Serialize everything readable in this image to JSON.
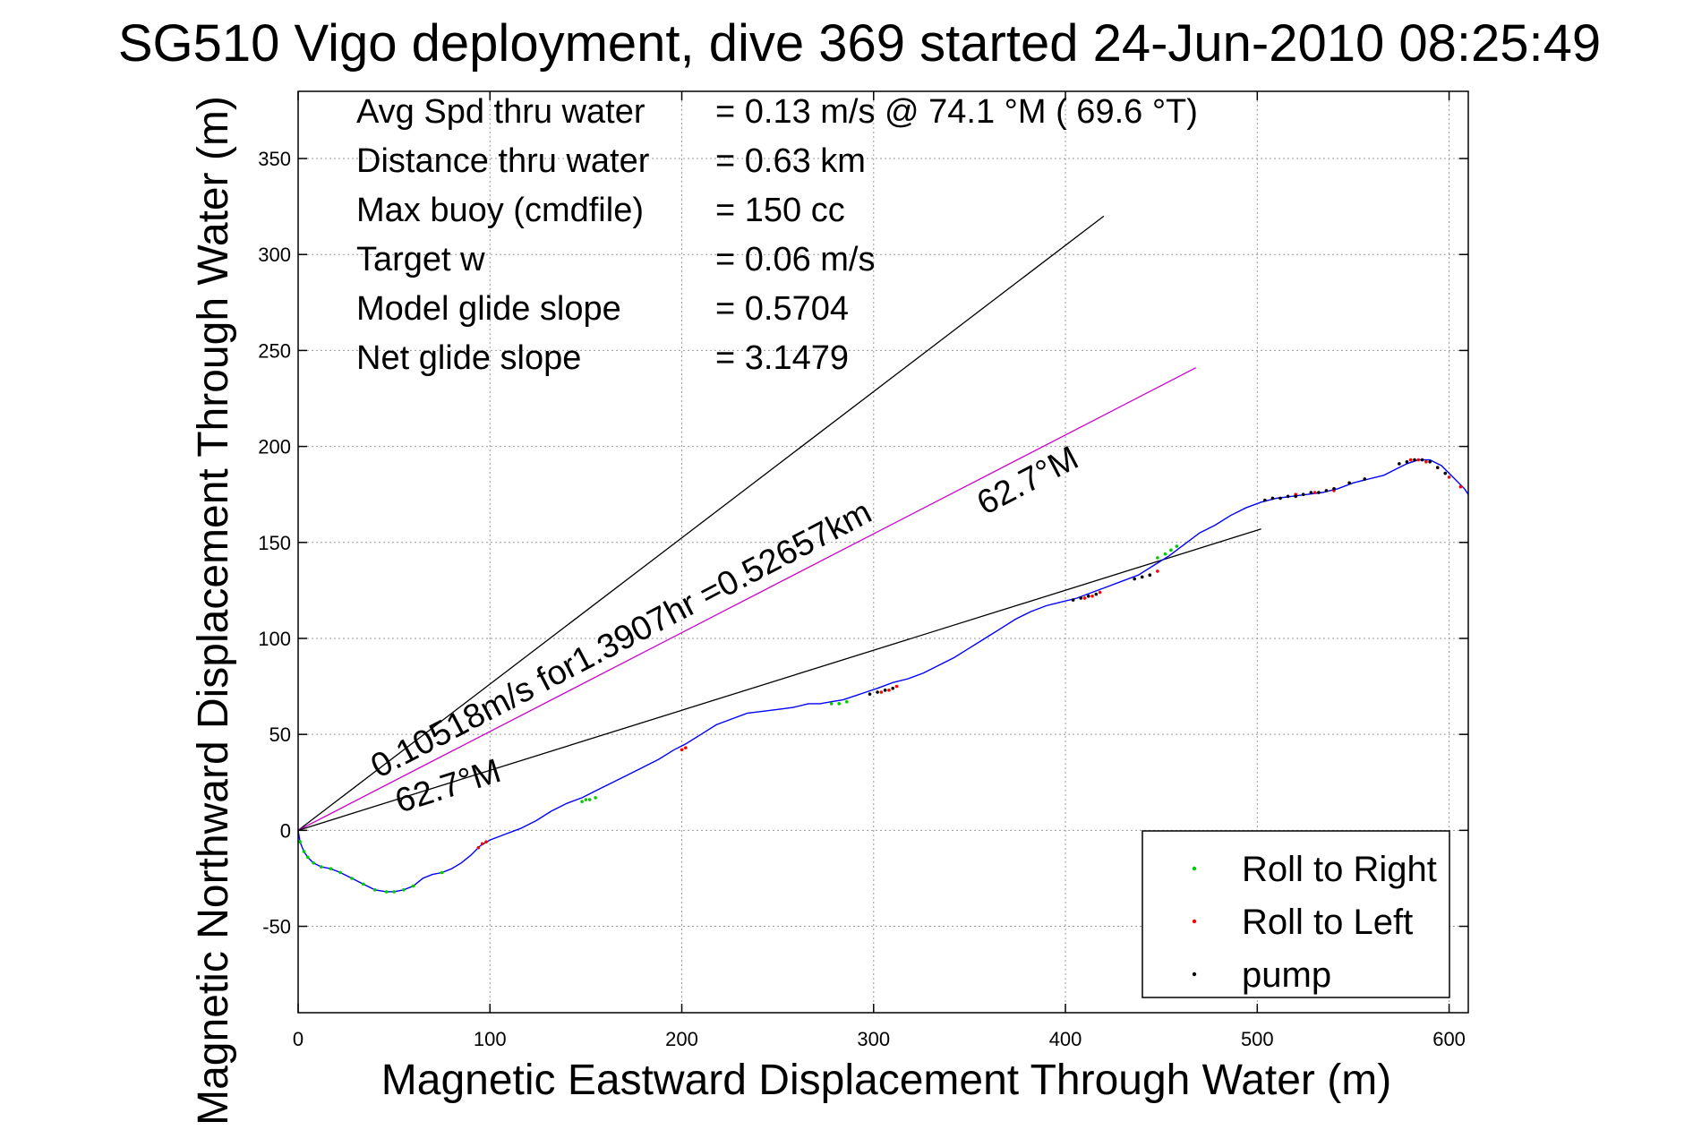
{
  "chart_data": {
    "type": "line",
    "title": "SG510 Vigo deployment, dive 369 started 24-Jun-2010 08:25:49",
    "xlabel": "Magnetic Eastward Displacement Through Water (m)",
    "ylabel": "Magnetic Northward Displacement Through Water (m)",
    "xlim": [
      0,
      610
    ],
    "ylim": [
      -95,
      385
    ],
    "xticks": [
      0,
      100,
      200,
      300,
      400,
      500,
      600
    ],
    "yticks": [
      -50,
      0,
      50,
      100,
      150,
      200,
      250,
      300,
      350
    ],
    "grid": true,
    "legend_position": "bottom-right",
    "stats": [
      {
        "label": "Avg Spd thru water",
        "value": "=  0.13 m/s @  74.1 °M ( 69.6 °T)"
      },
      {
        "label": "Distance thru water",
        "value": "=  0.63 km"
      },
      {
        "label": "Max buoy (cmdfile)",
        "value": "= 150 cc"
      },
      {
        "label": "Target w",
        "value": "= 0.06 m/s"
      },
      {
        "label": "Model glide slope",
        "value": "= 0.5704"
      },
      {
        "label": "Net glide slope",
        "value": "= 3.1479"
      }
    ],
    "reference_lines": [
      {
        "color": "#000000",
        "x": [
          0,
          420
        ],
        "y": [
          0,
          320
        ]
      },
      {
        "color": "#cc00cc",
        "x": [
          0,
          468
        ],
        "y": [
          0,
          241
        ]
      },
      {
        "color": "#000000",
        "x": [
          0,
          502
        ],
        "y": [
          0,
          157
        ]
      }
    ],
    "annotations": [
      {
        "text": "0.10518m/s for1.3907hr =0.52657km",
        "x": 42,
        "y": 27,
        "angle": 27.6
      },
      {
        "text": "62.7°M",
        "x": 358,
        "y": 164,
        "angle": 27.6
      },
      {
        "text": "62.7°M",
        "x": 53,
        "y": 9,
        "angle": 17.6
      }
    ],
    "series": [
      {
        "name": "track",
        "color": "#0000ff",
        "x": [
          0,
          1,
          3,
          5,
          8,
          12,
          17,
          22,
          28,
          34,
          40,
          46,
          50,
          55,
          60,
          65,
          70,
          75,
          80,
          85,
          90,
          95,
          100,
          108,
          116,
          124,
          132,
          140,
          148,
          156,
          164,
          172,
          180,
          188,
          196,
          202,
          210,
          218,
          226,
          234,
          242,
          250,
          258,
          266,
          272,
          278,
          284,
          290,
          296,
          302,
          310,
          318,
          326,
          334,
          342,
          350,
          358,
          366,
          374,
          382,
          390,
          398,
          406,
          414,
          422,
          430,
          438,
          446,
          454,
          462,
          470,
          478,
          486,
          494,
          502,
          510,
          518,
          526,
          534,
          542,
          550,
          558,
          566,
          572,
          578,
          584,
          590,
          596,
          602,
          608,
          610
        ],
        "y": [
          0,
          -6,
          -11,
          -14,
          -17,
          -19,
          -20,
          -22,
          -25,
          -28,
          -31,
          -32,
          -32,
          -31,
          -29,
          -25,
          -23,
          -22,
          -20,
          -17,
          -13,
          -8,
          -5,
          -2,
          1,
          5,
          10,
          14,
          17,
          21,
          25,
          29,
          33,
          37,
          42,
          45,
          50,
          55,
          58,
          61,
          62,
          63,
          64,
          66,
          66,
          67,
          68,
          70,
          72,
          74,
          77,
          79,
          82,
          86,
          90,
          95,
          100,
          105,
          110,
          114,
          117,
          119,
          121,
          124,
          127,
          130,
          133,
          138,
          143,
          149,
          155,
          159,
          164,
          168,
          171,
          173,
          174,
          175,
          176,
          178,
          181,
          183,
          185,
          188,
          191,
          193,
          193,
          190,
          184,
          178,
          175
        ]
      },
      {
        "name": "Roll to Right",
        "color": "#00cc00",
        "x": [
          1,
          3,
          5,
          8,
          12,
          17,
          22,
          28,
          34,
          40,
          46,
          50,
          55,
          60,
          75,
          148,
          150,
          152,
          155,
          278,
          282,
          286,
          448,
          452,
          455,
          458
        ],
        "y": [
          -6,
          -11,
          -14,
          -17,
          -19,
          -20,
          -22,
          -25,
          -28,
          -31,
          -32,
          -32,
          -31,
          -29,
          -22,
          15,
          16,
          16,
          17,
          66,
          66,
          67,
          142,
          144,
          146,
          148
        ]
      },
      {
        "name": "Roll to Left",
        "color": "#ff0000",
        "x": [
          94,
          96,
          98,
          200,
          202,
          304,
          308,
          312,
          410,
          414,
          418,
          440,
          444,
          448,
          520,
          530,
          540,
          556,
          580,
          584,
          588,
          594,
          600,
          606
        ],
        "y": [
          -9,
          -7,
          -6,
          42,
          43,
          72,
          73,
          75,
          121,
          122,
          124,
          132,
          133,
          135,
          175,
          176,
          177,
          183,
          193,
          193,
          192,
          189,
          184,
          179
        ]
      },
      {
        "name": "pump",
        "color": "#000000",
        "x": [
          298,
          302,
          306,
          310,
          404,
          408,
          412,
          416,
          436,
          440,
          444,
          504,
          508,
          512,
          516,
          520,
          524,
          528,
          532,
          536,
          540,
          548,
          556,
          574,
          578,
          582,
          586,
          590,
          594,
          598
        ],
        "y": [
          71,
          72,
          73,
          74,
          120,
          121,
          122,
          123,
          131,
          132,
          133,
          172,
          173,
          173,
          174,
          174,
          175,
          176,
          176,
          177,
          178,
          181,
          183,
          191,
          192,
          193,
          193,
          192,
          189,
          186
        ]
      }
    ]
  }
}
